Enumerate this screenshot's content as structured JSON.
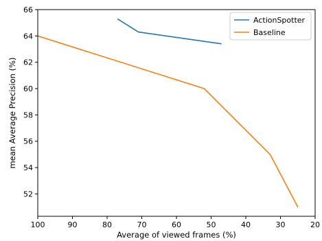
{
  "chart_data": {
    "type": "line",
    "title": "",
    "xlabel": "Average of viewed frames (%)",
    "ylabel": "mean Average Precision (%)",
    "xlim": [
      100,
      20
    ],
    "ylim": [
      50.3,
      66
    ],
    "x_axis_inverted": true,
    "x_ticks": [
      100,
      90,
      80,
      70,
      60,
      50,
      40,
      30,
      20
    ],
    "y_ticks": [
      52,
      54,
      56,
      58,
      60,
      62,
      64,
      66
    ],
    "grid": false,
    "legend_position": "top-right",
    "series": [
      {
        "name": "ActionSpotter",
        "color": "#1f77b4",
        "x": [
          77,
          71,
          47
        ],
        "y": [
          65.3,
          64.3,
          63.4
        ]
      },
      {
        "name": "Baseline",
        "color": "#ff7f0e",
        "x": [
          100,
          52,
          33,
          25
        ],
        "y": [
          64.0,
          60.0,
          55.0,
          51.0
        ]
      }
    ]
  }
}
